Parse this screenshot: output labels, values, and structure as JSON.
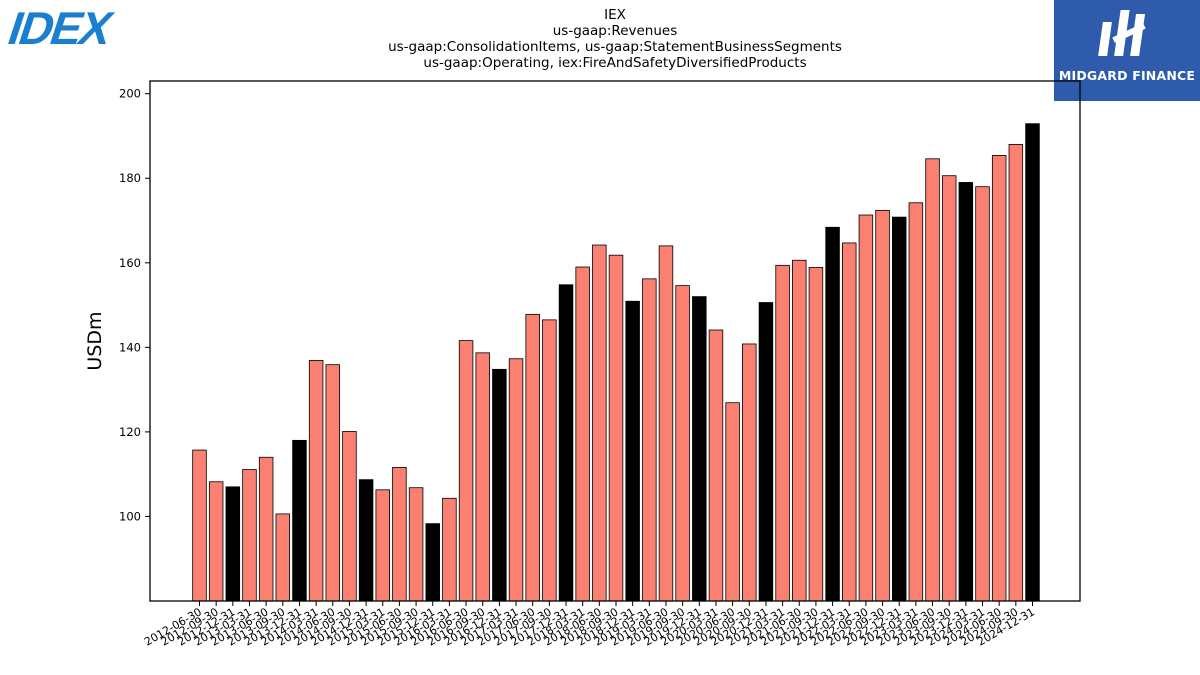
{
  "title": {
    "line1": "IEX",
    "line2": "us-gaap:Revenues",
    "line3": "us-gaap:ConsolidationItems, us-gaap:StatementBusinessSegments",
    "line4": "us-gaap:Operating, iex:FireAndSafetyDiversifiedProducts"
  },
  "logos": {
    "left_text": "IDEX",
    "right_text": "MIDGARD FINANCE"
  },
  "colors": {
    "bar_default": "#fa8072",
    "bar_highlight": "#000000",
    "logo_left": "#1a7fcf",
    "logo_right_bg": "#2e5bab"
  },
  "chart_data": {
    "type": "bar",
    "ylabel": "USDm",
    "ylim": [
      80,
      203
    ],
    "yticks": [
      100,
      120,
      140,
      160,
      180,
      200
    ],
    "categories": [
      "2012-06-30",
      "2012-09-30",
      "2012-12-31",
      "2013-03-31",
      "2013-06-30",
      "2013-09-30",
      "2013-12-31",
      "2014-03-31",
      "2014-06-30",
      "2014-09-30",
      "2014-12-31",
      "2015-03-31",
      "2015-06-30",
      "2015-09-30",
      "2015-12-31",
      "2016-03-31",
      "2016-06-30",
      "2016-09-30",
      "2016-12-31",
      "2017-03-31",
      "2017-06-30",
      "2017-09-30",
      "2017-12-31",
      "2018-03-31",
      "2018-06-30",
      "2018-09-30",
      "2018-12-31",
      "2019-03-31",
      "2019-06-30",
      "2019-09-30",
      "2019-12-31",
      "2020-03-31",
      "2020-06-30",
      "2020-09-30",
      "2020-12-31",
      "2021-03-31",
      "2021-06-30",
      "2021-09-30",
      "2021-12-31",
      "2022-03-31",
      "2022-06-30",
      "2022-09-30",
      "2022-12-31",
      "2023-03-31",
      "2023-06-30",
      "2023-09-30",
      "2023-12-31",
      "2024-03-31",
      "2024-06-30",
      "2024-09-30",
      "2024-12-31"
    ],
    "values": [
      115.7,
      108.2,
      107.0,
      111.1,
      114.0,
      100.6,
      118.0,
      136.9,
      135.9,
      120.1,
      108.7,
      106.3,
      111.6,
      106.8,
      98.3,
      104.3,
      141.6,
      138.7,
      134.8,
      137.3,
      147.8,
      146.5,
      154.8,
      159.0,
      164.2,
      161.8,
      150.9,
      156.2,
      164.0,
      154.6,
      152.0,
      144.1,
      126.9,
      140.8,
      150.6,
      159.4,
      160.6,
      158.9,
      168.4,
      164.7,
      171.3,
      172.4,
      170.8,
      174.2,
      184.6,
      180.6,
      179.0,
      178.0,
      185.4,
      188.0,
      192.9
    ],
    "highlight": [
      false,
      false,
      true,
      false,
      false,
      false,
      true,
      false,
      false,
      false,
      true,
      false,
      false,
      false,
      true,
      false,
      false,
      false,
      true,
      false,
      false,
      false,
      true,
      false,
      false,
      false,
      true,
      false,
      false,
      false,
      true,
      false,
      false,
      false,
      true,
      false,
      false,
      false,
      true,
      false,
      false,
      false,
      true,
      false,
      false,
      false,
      true,
      false,
      false,
      false,
      true
    ],
    "grid": false
  }
}
